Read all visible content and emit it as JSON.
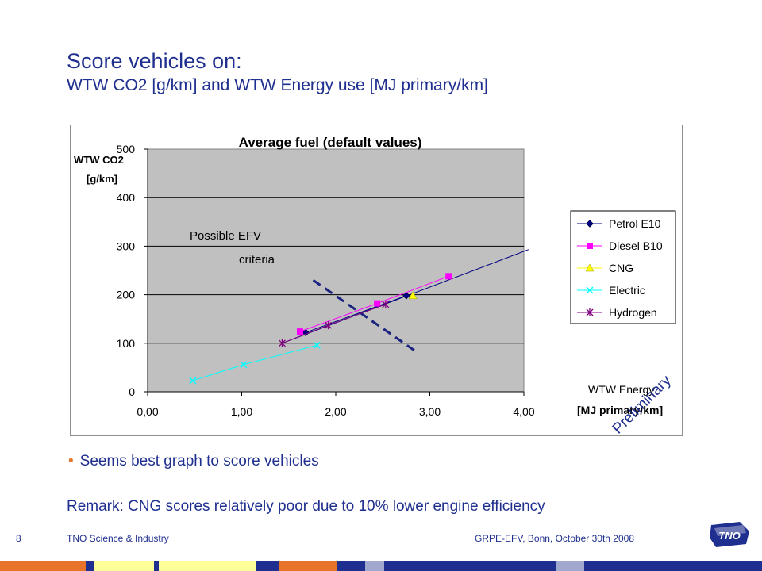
{
  "slide": {
    "title": "Score vehicles on:",
    "subtitle": "WTW CO2 [g/km] and WTW Energy use [MJ primary/km]",
    "bullet": "Seems best graph to score vehicles",
    "remark": "Remark: CNG scores relatively poor due to 10% lower engine efficiency"
  },
  "footer": {
    "page_number": "8",
    "left": "TNO Science & Industry",
    "right": "GRPE-EFV, Bonn, October 30th 2008",
    "logo_text": "TNO",
    "band_colors": [
      "#e8742a",
      "#ffff99",
      "#ffff99",
      "#ffff99",
      "#1f2f8f",
      "#e8742a",
      "#1f2f8f",
      "#a0a8d0",
      "#1f2f8f"
    ]
  },
  "colors": {
    "accent_blue": "#1f2f8f",
    "bullet_orange": "#e8742a",
    "plot_background": "#c0c0c0"
  },
  "chart_data": {
    "type": "scatter",
    "title": "Average fuel (default values)",
    "ylabel_line1": "WTW CO2",
    "ylabel_line2": "[g/km]",
    "xlabel_line1": "WTW Energy",
    "xlabel_line2": "[MJ primary/km]",
    "xlim": [
      0,
      4
    ],
    "ylim": [
      0,
      500
    ],
    "x_ticks": [
      0,
      1,
      2,
      3,
      4
    ],
    "x_tick_labels": [
      "0,00",
      "1,00",
      "2,00",
      "3,00",
      "4,00"
    ],
    "y_ticks": [
      0,
      100,
      200,
      300,
      400,
      500
    ],
    "y_tick_labels": [
      "0",
      "100",
      "200",
      "300",
      "400",
      "500"
    ],
    "grid": "horizontal",
    "legend_position": "right",
    "series": [
      {
        "name": "Petrol E10",
        "color": "#000080",
        "marker": "diamond",
        "points": [
          [
            1.68,
            122
          ],
          [
            2.75,
            198
          ]
        ]
      },
      {
        "name": "Diesel B10",
        "color": "#ff00ff",
        "marker": "square",
        "points": [
          [
            1.62,
            124
          ],
          [
            2.44,
            182
          ],
          [
            3.2,
            238
          ]
        ]
      },
      {
        "name": "CNG",
        "color": "#ffff00",
        "marker": "triangle",
        "points": [
          [
            2.82,
            198
          ]
        ]
      },
      {
        "name": "Electric",
        "color": "#00ffff",
        "marker": "x",
        "points": [
          [
            0.48,
            23
          ],
          [
            1.02,
            56
          ],
          [
            1.8,
            96
          ]
        ]
      },
      {
        "name": "Hydrogen",
        "color": "#800080",
        "marker": "star",
        "points": [
          [
            1.43,
            100
          ],
          [
            1.92,
            137
          ],
          [
            2.53,
            180
          ]
        ]
      }
    ],
    "reference_line": {
      "color": "#000080",
      "points": [
        [
          1.43,
          100
        ],
        [
          4.05,
          293
        ]
      ]
    },
    "criteria_line": {
      "color": "#1a237e",
      "style": "dashed",
      "points": [
        [
          1.76,
          230
        ],
        [
          2.86,
          82
        ]
      ]
    },
    "annotations": {
      "criteria_line1": "Possible EFV",
      "criteria_line2": "criteria",
      "stamp": "Preliminary"
    }
  }
}
